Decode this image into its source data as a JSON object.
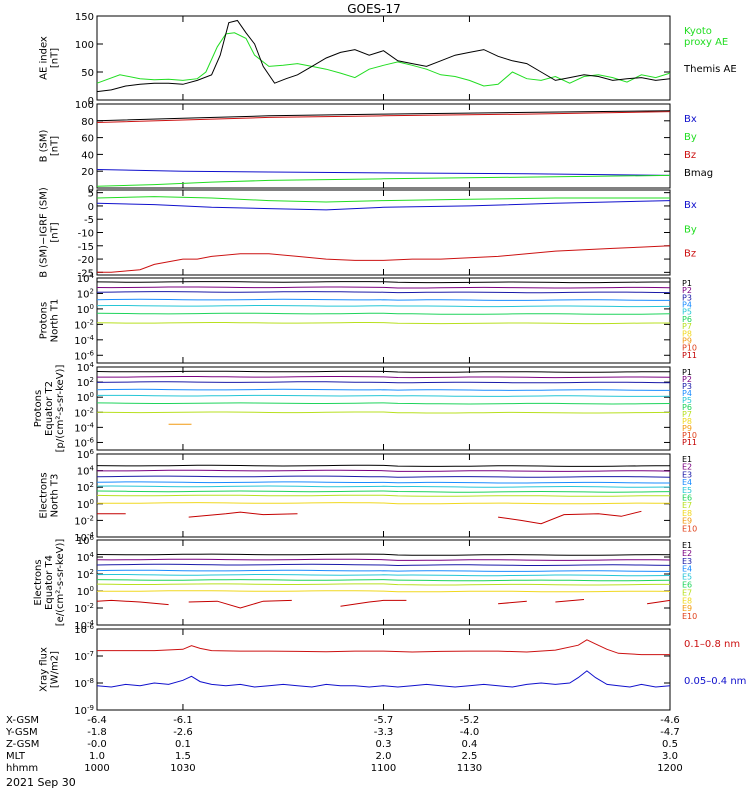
{
  "title": "GOES-17",
  "date_label": "2021 Sep 30",
  "colors": {
    "black": "#000000",
    "green": "#22dd22",
    "blue": "#1010cc",
    "red": "#cc1111",
    "ch": [
      "#000000",
      "#7a0080",
      "#1a1aa8",
      "#1a8cff",
      "#26c6d6",
      "#1fd45c",
      "#b8e020",
      "#f0d820",
      "#f29a10",
      "#e0401a",
      "#c40000"
    ]
  },
  "chart_data": [
    {
      "id": "ae",
      "type": "line",
      "ylabel": [
        "AE index",
        "[nT]"
      ],
      "ylim": [
        0,
        150
      ],
      "yticks": [
        "150",
        "100",
        "50",
        "0"
      ],
      "ytick_values": [
        150,
        100,
        50,
        0
      ],
      "xlim": [
        1000,
        1200
      ],
      "series": [
        {
          "name": "Kyoto proxy AE",
          "legend": [
            "Kyoto",
            "proxy AE"
          ],
          "color": "#22dd22",
          "x": [
            1000,
            1008,
            1015,
            1020,
            1025,
            1030,
            1035,
            1038,
            1042,
            1045,
            1048,
            1052,
            1055,
            1060,
            1065,
            1070,
            1075,
            1080,
            1085,
            1090,
            1095,
            1100,
            1105,
            1110,
            1115,
            1120,
            1125,
            1130,
            1135,
            1140,
            1145,
            1150,
            1155,
            1160,
            1165,
            1170,
            1175,
            1180,
            1185,
            1190,
            1195,
            1200
          ],
          "y": [
            30,
            45,
            38,
            36,
            37,
            35,
            38,
            50,
            95,
            118,
            120,
            110,
            80,
            60,
            62,
            65,
            60,
            55,
            48,
            40,
            55,
            62,
            68,
            62,
            55,
            45,
            42,
            35,
            25,
            28,
            50,
            38,
            35,
            42,
            30,
            42,
            45,
            40,
            32,
            45,
            40,
            48
          ]
        },
        {
          "name": "Themis AE",
          "legend": [
            "Themis AE"
          ],
          "color": "#000000",
          "x": [
            1000,
            1005,
            1010,
            1015,
            1020,
            1025,
            1030,
            1035,
            1040,
            1043,
            1046,
            1049,
            1052,
            1055,
            1058,
            1062,
            1066,
            1070,
            1075,
            1080,
            1085,
            1090,
            1095,
            1100,
            1105,
            1110,
            1115,
            1120,
            1125,
            1130,
            1135,
            1140,
            1145,
            1150,
            1155,
            1160,
            1165,
            1170,
            1175,
            1180,
            1185,
            1190,
            1195,
            1200
          ],
          "y": [
            15,
            18,
            25,
            28,
            30,
            30,
            28,
            35,
            45,
            80,
            138,
            142,
            120,
            100,
            60,
            30,
            38,
            45,
            60,
            75,
            85,
            90,
            80,
            88,
            70,
            65,
            60,
            70,
            80,
            85,
            90,
            78,
            70,
            65,
            50,
            35,
            40,
            45,
            42,
            35,
            38,
            40,
            35,
            38
          ]
        }
      ],
      "scale": "linear"
    },
    {
      "id": "bsm",
      "type": "line",
      "ylabel": [
        "B (SM)",
        "[nT]"
      ],
      "ylim": [
        0,
        100
      ],
      "yticks": [
        "100",
        "80",
        "60",
        "40",
        "20",
        "0"
      ],
      "ytick_values": [
        100,
        80,
        60,
        40,
        20,
        0
      ],
      "xlim": [
        1000,
        1200
      ],
      "series": [
        {
          "name": "Bx",
          "legend": [
            "Bx"
          ],
          "color": "#1010cc",
          "x": [
            1000,
            1030,
            1060,
            1100,
            1150,
            1200
          ],
          "y": [
            22,
            20,
            19,
            18,
            17,
            15
          ]
        },
        {
          "name": "By",
          "legend": [
            "By"
          ],
          "color": "#22dd22",
          "x": [
            1000,
            1020,
            1040,
            1060,
            1100,
            1150,
            1200
          ],
          "y": [
            2,
            4,
            7,
            9,
            11,
            13,
            15
          ]
        },
        {
          "name": "Bz",
          "legend": [
            "Bz"
          ],
          "color": "#cc1111",
          "x": [
            1000,
            1030,
            1060,
            1100,
            1150,
            1200
          ],
          "y": [
            78,
            81,
            84,
            86,
            88,
            91
          ]
        },
        {
          "name": "Bmag",
          "legend": [
            "Bmag"
          ],
          "color": "#000000",
          "x": [
            1000,
            1030,
            1060,
            1100,
            1150,
            1200
          ],
          "y": [
            80,
            83,
            86,
            88,
            90,
            92
          ]
        }
      ],
      "scale": "linear"
    },
    {
      "id": "bigrf",
      "type": "line",
      "ylabel": [
        "B (SM)−IGRF (SM)",
        "[nT]"
      ],
      "ylim": [
        -26,
        6
      ],
      "yticks": [
        "5",
        "0",
        "-5",
        "-10",
        "-15",
        "-20",
        "-25"
      ],
      "ytick_values": [
        5,
        0,
        -5,
        -10,
        -15,
        -20,
        -25
      ],
      "xlim": [
        1000,
        1200
      ],
      "series": [
        {
          "name": "Bx",
          "legend": [
            "Bx"
          ],
          "color": "#1010cc",
          "x": [
            1000,
            1020,
            1040,
            1060,
            1080,
            1100,
            1130,
            1160,
            1200
          ],
          "y": [
            1,
            0.5,
            -0.5,
            -1,
            -1.5,
            -0.5,
            0,
            1,
            2
          ]
        },
        {
          "name": "By",
          "legend": [
            "By"
          ],
          "color": "#22dd22",
          "x": [
            1000,
            1020,
            1040,
            1060,
            1080,
            1100,
            1130,
            1160,
            1200
          ],
          "y": [
            3,
            3.5,
            3,
            2,
            1.5,
            2,
            2.5,
            3,
            3
          ]
        },
        {
          "name": "Bz",
          "legend": [
            "Bz"
          ],
          "color": "#cc1111",
          "x": [
            1000,
            1005,
            1010,
            1015,
            1020,
            1025,
            1030,
            1035,
            1040,
            1050,
            1060,
            1070,
            1080,
            1090,
            1100,
            1110,
            1120,
            1130,
            1140,
            1150,
            1160,
            1170,
            1180,
            1190,
            1200
          ],
          "y": [
            -25,
            -25,
            -24.5,
            -24,
            -22,
            -21,
            -20,
            -20,
            -19,
            -18,
            -18,
            -19,
            -20,
            -20.5,
            -20.5,
            -20,
            -20,
            -19.5,
            -19,
            -18,
            -17,
            -16.5,
            -16,
            -15.5,
            -15
          ]
        }
      ],
      "scale": "linear"
    },
    {
      "id": "pt1",
      "type": "line",
      "ylabel": [
        "Protons",
        "North T1"
      ],
      "scale": "log",
      "ylim_exp": [
        -7,
        4
      ],
      "yticks": [
        "10^4",
        "10^2",
        "10^0",
        "10^-2",
        "10^-4",
        "10^-6"
      ],
      "ytick_exp": [
        4,
        2,
        0,
        -2,
        -4,
        -6
      ],
      "xlim": [
        1000,
        1200
      ],
      "legend": [
        "P1",
        "P2",
        "P3",
        "P4",
        "P5",
        "P6",
        "P7",
        "P8",
        "P9",
        "P10",
        "P11"
      ],
      "levels_exp": [
        3.5,
        2.8,
        2.2,
        1.2,
        0.4,
        -0.6,
        -1.8,
        -9,
        -9,
        -9,
        -9
      ]
    },
    {
      "id": "pt2",
      "type": "line",
      "ylabel": [
        "Protons",
        "Equator T2",
        "[p/(cm²-s-sr-keV)]"
      ],
      "scale": "log",
      "ylim_exp": [
        -7,
        4
      ],
      "yticks": [
        "10^4",
        "10^2",
        "10^0",
        "10^-2",
        "10^-4",
        "10^-6"
      ],
      "ytick_exp": [
        4,
        2,
        0,
        -2,
        -4,
        -6
      ],
      "xlim": [
        1000,
        1200
      ],
      "legend": [
        "P1",
        "P2",
        "P3",
        "P4",
        "P5",
        "P6",
        "P7",
        "P8",
        "P9",
        "P10",
        "P11"
      ],
      "levels_exp": [
        3.4,
        2.7,
        2.0,
        1.0,
        0.2,
        -0.8,
        -2.0,
        -9,
        -9,
        -9,
        -9
      ],
      "fragment": {
        "x": [
          1025,
          1033
        ],
        "exp": -3.6,
        "color": "#f29a10"
      }
    },
    {
      "id": "et3",
      "type": "line",
      "ylabel": [
        "Electrons",
        "North T3"
      ],
      "scale": "log",
      "ylim_exp": [
        -4,
        6
      ],
      "yticks": [
        "10^6",
        "10^4",
        "10^2",
        "10^0",
        "10^-2",
        "10^-4"
      ],
      "ytick_exp": [
        6,
        4,
        2,
        0,
        -2,
        -4
      ],
      "xlim": [
        1000,
        1200
      ],
      "legend": [
        "E1",
        "E2",
        "E3",
        "E4",
        "E5",
        "E6",
        "E7",
        "E8",
        "E9",
        "E10"
      ],
      "levels_exp": [
        4.6,
        4.0,
        3.3,
        2.6,
        2.1,
        1.5,
        1.0,
        0.1,
        -9,
        -9
      ],
      "fragments": [
        {
          "x": [
            1000,
            1010
          ],
          "exp": [
            -1.2,
            -1.2
          ],
          "color": "#c40000"
        },
        {
          "x": [
            1032,
            1045,
            1050,
            1058,
            1070
          ],
          "exp": [
            -1.6,
            -1.2,
            -1.0,
            -1.3,
            -1.2
          ],
          "color": "#c40000"
        },
        {
          "x": [
            1140,
            1148,
            1155,
            1163,
            1175,
            1183,
            1190
          ],
          "exp": [
            -1.6,
            -2.0,
            -2.4,
            -1.3,
            -1.2,
            -1.5,
            -0.9
          ],
          "color": "#c40000"
        }
      ]
    },
    {
      "id": "et4",
      "type": "line",
      "ylabel": [
        "Electrons",
        "Equator T4",
        "[e/(cm²-s-sr-keV)]"
      ],
      "scale": "log",
      "ylim_exp": [
        -4,
        6
      ],
      "yticks": [
        "10^6",
        "10^4",
        "10^2",
        "10^0",
        "10^-2",
        "10^-4"
      ],
      "ytick_exp": [
        6,
        4,
        2,
        0,
        -2,
        -4
      ],
      "xlim": [
        1000,
        1200
      ],
      "legend": [
        "E1",
        "E2",
        "E3",
        "E4",
        "E5",
        "E6",
        "E7",
        "E8",
        "E9",
        "E10"
      ],
      "levels_exp": [
        4.3,
        3.7,
        3.1,
        2.4,
        1.9,
        1.3,
        0.8,
        0,
        -9,
        -9
      ],
      "fragments": [
        {
          "x": [
            1000,
            1005,
            1015,
            1025
          ],
          "exp": [
            -1.2,
            -1.1,
            -1.3,
            -1.6
          ],
          "color": "#c40000"
        },
        {
          "x": [
            1032,
            1042,
            1050,
            1058,
            1068
          ],
          "exp": [
            -1.3,
            -1.2,
            -2.0,
            -1.2,
            -1.1
          ],
          "color": "#c40000"
        },
        {
          "x": [
            1085,
            1095,
            1100,
            1108
          ],
          "exp": [
            -1.8,
            -1.3,
            -1.1,
            -1.1
          ],
          "color": "#c40000"
        },
        {
          "x": [
            1140,
            1150
          ],
          "exp": [
            -1.5,
            -1.2
          ],
          "color": "#c40000"
        },
        {
          "x": [
            1160,
            1170
          ],
          "exp": [
            -1.3,
            -1.0
          ],
          "color": "#c40000"
        },
        {
          "x": [
            1192,
            1200
          ],
          "exp": [
            -1.5,
            -1.1
          ],
          "color": "#c40000"
        }
      ]
    },
    {
      "id": "xray",
      "type": "line",
      "ylabel": [
        "Xray flux",
        "[W/m2]"
      ],
      "scale": "log",
      "ylim_exp": [
        -9,
        -6
      ],
      "yticks": [
        "10^-6",
        "10^-7",
        "10^-8",
        "10^-9"
      ],
      "ytick_exp": [
        -6,
        -7,
        -8,
        -9
      ],
      "xlim": [
        1000,
        1200
      ],
      "series": [
        {
          "name": "0.1-0.8 nm",
          "legend": [
            "0.1–0.8 nm"
          ],
          "color": "#cc1111",
          "x": [
            1000,
            1010,
            1020,
            1030,
            1033,
            1036,
            1040,
            1050,
            1060,
            1070,
            1080,
            1090,
            1100,
            1110,
            1120,
            1130,
            1140,
            1150,
            1160,
            1168,
            1171,
            1174,
            1178,
            1182,
            1190,
            1200
          ],
          "exp": [
            -6.8,
            -6.8,
            -6.8,
            -6.75,
            -6.62,
            -6.72,
            -6.8,
            -6.82,
            -6.82,
            -6.83,
            -6.84,
            -6.82,
            -6.82,
            -6.85,
            -6.83,
            -6.82,
            -6.82,
            -6.85,
            -6.78,
            -6.6,
            -6.4,
            -6.55,
            -6.75,
            -6.9,
            -6.95,
            -6.95
          ]
        },
        {
          "name": "0.05-0.4 nm",
          "legend": [
            "0.05–0.4 nm"
          ],
          "color": "#1010cc",
          "x": [
            1000,
            1005,
            1010,
            1015,
            1020,
            1025,
            1030,
            1033,
            1036,
            1040,
            1045,
            1050,
            1055,
            1060,
            1065,
            1070,
            1075,
            1080,
            1085,
            1090,
            1095,
            1100,
            1105,
            1110,
            1115,
            1120,
            1125,
            1130,
            1135,
            1140,
            1145,
            1150,
            1155,
            1160,
            1165,
            1168,
            1171,
            1174,
            1178,
            1182,
            1186,
            1190,
            1195,
            1200
          ],
          "exp": [
            -8.1,
            -8.15,
            -8.05,
            -8.1,
            -8.0,
            -8.05,
            -7.9,
            -7.75,
            -7.95,
            -8.05,
            -8.1,
            -8.05,
            -8.15,
            -8.1,
            -8.05,
            -8.1,
            -8.15,
            -8.05,
            -8.1,
            -8.1,
            -8.15,
            -8.1,
            -8.15,
            -8.1,
            -8.05,
            -8.1,
            -8.15,
            -8.1,
            -8.05,
            -8.1,
            -8.15,
            -8.05,
            -8.0,
            -8.05,
            -8.0,
            -7.8,
            -7.55,
            -7.8,
            -8.05,
            -8.1,
            -8.15,
            -8.05,
            -8.15,
            -8.1
          ]
        }
      ]
    }
  ],
  "x_axis": {
    "row_labels": [
      "X-GSM",
      "Y-GSM",
      "Z-GSM",
      "MLT",
      "hhmm"
    ],
    "columns": [
      {
        "x": 1000,
        "values": [
          "-6.4",
          "-1.8",
          "-0.0",
          "1.0",
          "1000"
        ]
      },
      {
        "x": 1030,
        "values": [
          "-6.1",
          "-2.6",
          "0.1",
          "1.5",
          "1030"
        ]
      },
      {
        "x": 1100,
        "values": [
          "-5.7",
          "-3.3",
          "0.3",
          "2.0",
          "1100"
        ]
      },
      {
        "x": 1130,
        "values": [
          "-5.2",
          "-4.0",
          "0.4",
          "2.5",
          "1130"
        ]
      },
      {
        "x": 1200,
        "values": [
          "-4.6",
          "-4.7",
          "0.5",
          "3.0",
          "1200"
        ]
      }
    ]
  }
}
